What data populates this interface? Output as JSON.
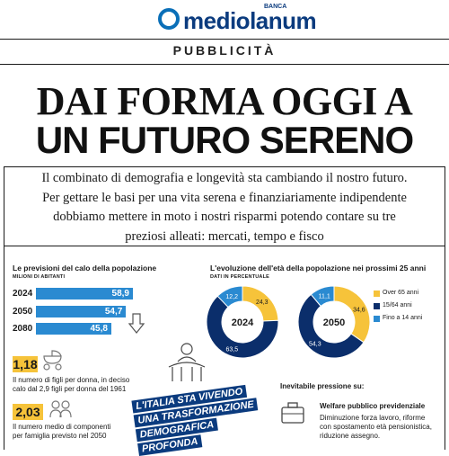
{
  "header": {
    "brand": "mediolanum",
    "brand_tag": "BANCA",
    "label": "PUBBLICITÀ"
  },
  "headline": {
    "line1": "DAI FORMA OGGI A",
    "line2": "UN FUTURO SERENO"
  },
  "intro": {
    "line1": "Il combinato di demografia e longevità sta cambiando il nostro futuro.",
    "line2": "Per gettare le basi per una vita serena e finanziariamente indipendente",
    "line3": "dobbiamo mettere in moto i nostri risparmi potendo contare su tre",
    "line4": "preziosi alleati: mercati, tempo e fisco"
  },
  "population": {
    "title": "Le previsioni del calo della popolazione",
    "subtitle": "MILIONI DI ABITANTI",
    "rows": [
      {
        "year": "2024",
        "value_label": "58,9",
        "value": 58.9
      },
      {
        "year": "2050",
        "value_label": "54,7",
        "value": 54.7
      },
      {
        "year": "2080",
        "value_label": "45,8",
        "value": 45.8
      }
    ]
  },
  "stats": {
    "fertility_value": "1,18",
    "fertility_text_1": "Il numero di figli per donna, in deciso",
    "fertility_text_2": "calo dal 2,9 figli per donna del 1961",
    "family_value": "2,03",
    "family_text_1": "Il numero medio di componenti",
    "family_text_2": "per famiglia previsto nel 2050"
  },
  "ages": {
    "title": "L'evoluzione dell'età della popolazione nei prossimi 25 anni",
    "subtitle": "DATI IN PERCENTUALE",
    "legend": [
      {
        "label": "Over 65 anni",
        "color": "#f6c33a"
      },
      {
        "label": "15/64 anni",
        "color": "#0b2e6b"
      },
      {
        "label": "Fino a 14 anni",
        "color": "#2a8ad1"
      }
    ],
    "donuts": [
      {
        "year": "2024",
        "over65": 24.3,
        "mid": 63.5,
        "young": 12.2,
        "over65_label": "24,3",
        "mid_label": "63,5",
        "young_label": "12,2"
      },
      {
        "year": "2050",
        "over65": 34.6,
        "mid": 54.3,
        "young": 11.1,
        "over65_label": "34,6",
        "mid_label": "54,3",
        "young_label": "11,1"
      }
    ]
  },
  "banner": {
    "line1": "L'ITALIA STA VIVENDO",
    "line2": "UNA TRASFORMAZIONE",
    "line3": "DEMOGRAFICA",
    "line4": "PROFONDA"
  },
  "pressure": {
    "title": "Inevitabile pressione su:",
    "item_title": "Welfare pubblico previdenziale",
    "item_text_1": "Diminuzione forza lavoro, riforme",
    "item_text_2": "con spostamento età pensionistica,",
    "item_text_3": "riduzione assegno."
  },
  "colors": {
    "brand_blue": "#0b3b7e",
    "bar_blue": "#2a8ad1",
    "accent_yellow": "#f6c33a",
    "navy": "#0b2e6b"
  }
}
